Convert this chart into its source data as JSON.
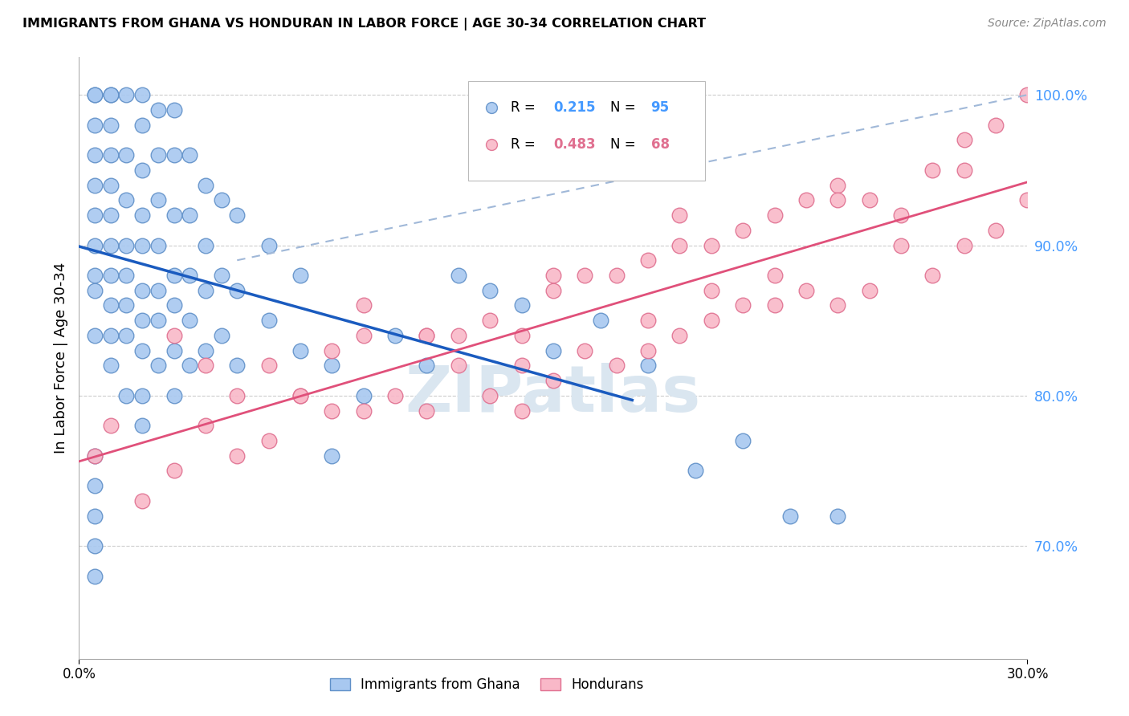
{
  "title": "IMMIGRANTS FROM GHANA VS HONDURAN IN LABOR FORCE | AGE 30-34 CORRELATION CHART",
  "source": "Source: ZipAtlas.com",
  "ylabel": "In Labor Force | Age 30-34",
  "xlim": [
    0.0,
    0.3
  ],
  "ylim": [
    0.625,
    1.025
  ],
  "yticks": [
    0.7,
    0.8,
    0.9,
    1.0
  ],
  "ytick_labels": [
    "70.0%",
    "80.0%",
    "90.0%",
    "100.0%"
  ],
  "ghana_color": "#a8c8f0",
  "ghana_edge": "#6090c8",
  "honduran_color": "#f9b8c8",
  "honduran_edge": "#e07090",
  "ghana_R": 0.215,
  "ghana_N": 95,
  "honduran_R": 0.483,
  "honduran_N": 68,
  "ghana_line_color": "#1a5bbf",
  "honduran_line_color": "#e0507a",
  "dashed_color": "#a0b8d8",
  "watermark": "ZIPatlas",
  "watermark_color": "#dae6f0",
  "ghana_scatter_x": [
    0.005,
    0.005,
    0.005,
    0.005,
    0.005,
    0.005,
    0.005,
    0.005,
    0.005,
    0.005,
    0.01,
    0.01,
    0.01,
    0.01,
    0.01,
    0.01,
    0.01,
    0.01,
    0.01,
    0.01,
    0.01,
    0.015,
    0.015,
    0.015,
    0.015,
    0.015,
    0.015,
    0.015,
    0.015,
    0.02,
    0.02,
    0.02,
    0.02,
    0.02,
    0.02,
    0.02,
    0.02,
    0.02,
    0.02,
    0.025,
    0.025,
    0.025,
    0.025,
    0.025,
    0.025,
    0.025,
    0.03,
    0.03,
    0.03,
    0.03,
    0.03,
    0.03,
    0.03,
    0.035,
    0.035,
    0.035,
    0.035,
    0.035,
    0.04,
    0.04,
    0.04,
    0.04,
    0.045,
    0.045,
    0.045,
    0.05,
    0.05,
    0.05,
    0.06,
    0.06,
    0.07,
    0.07,
    0.08,
    0.08,
    0.09,
    0.1,
    0.11,
    0.12,
    0.13,
    0.14,
    0.15,
    0.165,
    0.18,
    0.195,
    0.21,
    0.225,
    0.24,
    0.005,
    0.005,
    0.005,
    0.005,
    0.005
  ],
  "ghana_scatter_y": [
    0.84,
    0.87,
    0.88,
    0.9,
    0.92,
    0.94,
    0.96,
    0.98,
    1.0,
    1.0,
    0.82,
    0.84,
    0.86,
    0.88,
    0.9,
    0.92,
    0.94,
    0.96,
    0.98,
    1.0,
    1.0,
    0.8,
    0.84,
    0.86,
    0.88,
    0.9,
    0.93,
    0.96,
    1.0,
    0.78,
    0.8,
    0.83,
    0.85,
    0.87,
    0.9,
    0.92,
    0.95,
    0.98,
    1.0,
    0.82,
    0.85,
    0.87,
    0.9,
    0.93,
    0.96,
    0.99,
    0.8,
    0.83,
    0.86,
    0.88,
    0.92,
    0.96,
    0.99,
    0.82,
    0.85,
    0.88,
    0.92,
    0.96,
    0.83,
    0.87,
    0.9,
    0.94,
    0.84,
    0.88,
    0.93,
    0.82,
    0.87,
    0.92,
    0.85,
    0.9,
    0.83,
    0.88,
    0.76,
    0.82,
    0.8,
    0.84,
    0.82,
    0.88,
    0.87,
    0.86,
    0.83,
    0.85,
    0.82,
    0.75,
    0.77,
    0.72,
    0.72,
    0.68,
    0.7,
    0.72,
    0.74,
    0.76
  ],
  "honduran_scatter_x": [
    0.005,
    0.01,
    0.02,
    0.03,
    0.04,
    0.04,
    0.05,
    0.05,
    0.06,
    0.07,
    0.08,
    0.08,
    0.09,
    0.09,
    0.1,
    0.11,
    0.11,
    0.12,
    0.13,
    0.13,
    0.14,
    0.14,
    0.15,
    0.15,
    0.16,
    0.17,
    0.17,
    0.18,
    0.18,
    0.19,
    0.19,
    0.2,
    0.2,
    0.21,
    0.21,
    0.22,
    0.22,
    0.23,
    0.23,
    0.24,
    0.24,
    0.25,
    0.25,
    0.26,
    0.27,
    0.27,
    0.28,
    0.28,
    0.29,
    0.29,
    0.3,
    0.3,
    0.03,
    0.06,
    0.09,
    0.12,
    0.16,
    0.2,
    0.24,
    0.28,
    0.14,
    0.18,
    0.22,
    0.26,
    0.07,
    0.11,
    0.15,
    0.19
  ],
  "honduran_scatter_y": [
    0.76,
    0.78,
    0.73,
    0.75,
    0.78,
    0.82,
    0.76,
    0.8,
    0.77,
    0.8,
    0.79,
    0.83,
    0.79,
    0.84,
    0.8,
    0.79,
    0.84,
    0.82,
    0.8,
    0.85,
    0.79,
    0.84,
    0.81,
    0.87,
    0.83,
    0.82,
    0.88,
    0.83,
    0.89,
    0.84,
    0.9,
    0.85,
    0.9,
    0.86,
    0.91,
    0.86,
    0.92,
    0.87,
    0.93,
    0.86,
    0.94,
    0.87,
    0.93,
    0.9,
    0.88,
    0.95,
    0.9,
    0.97,
    0.91,
    0.98,
    0.93,
    1.0,
    0.84,
    0.82,
    0.86,
    0.84,
    0.88,
    0.87,
    0.93,
    0.95,
    0.82,
    0.85,
    0.88,
    0.92,
    0.8,
    0.84,
    0.88,
    0.92
  ],
  "ghana_line_x_start": 0.0,
  "ghana_line_x_end": 0.175,
  "dashed_line_x_start": 0.05,
  "dashed_line_x_end": 0.3,
  "honduran_line_x_start": 0.0,
  "honduran_line_x_end": 0.3
}
